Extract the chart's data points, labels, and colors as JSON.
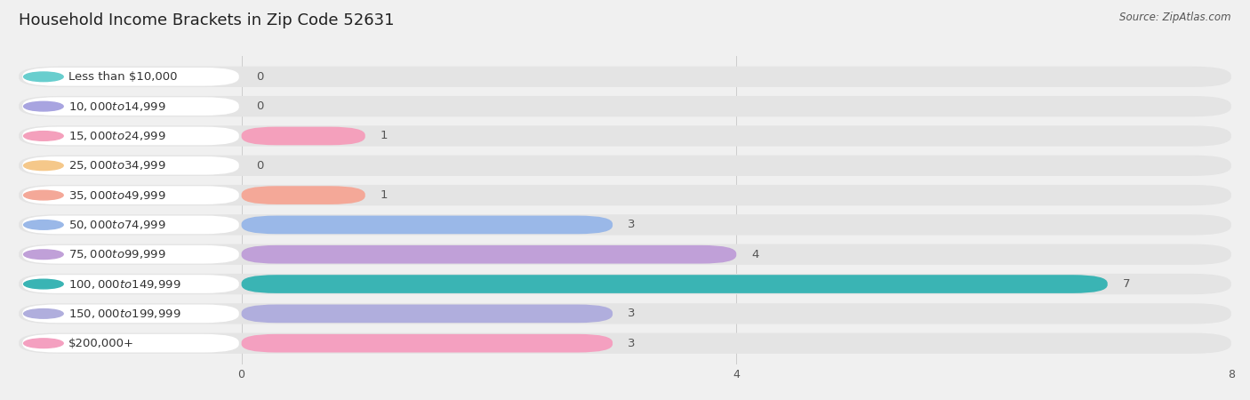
{
  "title": "Household Income Brackets in Zip Code 52631",
  "source": "Source: ZipAtlas.com",
  "categories": [
    "Less than $10,000",
    "$10,000 to $14,999",
    "$15,000 to $24,999",
    "$25,000 to $34,999",
    "$35,000 to $49,999",
    "$50,000 to $74,999",
    "$75,000 to $99,999",
    "$100,000 to $149,999",
    "$150,000 to $199,999",
    "$200,000+"
  ],
  "values": [
    0,
    0,
    1,
    0,
    1,
    3,
    4,
    7,
    3,
    3
  ],
  "bar_colors": [
    "#68cece",
    "#a8a4e0",
    "#f4a0bc",
    "#f5c88a",
    "#f4a898",
    "#9ab8e8",
    "#c0a0d8",
    "#3ab4b4",
    "#b0aedd",
    "#f4a0c0"
  ],
  "label_pill_color": "#ffffff",
  "background_color": "#f0f0f0",
  "bar_track_color": "#e4e4e4",
  "xlim": [
    0,
    8
  ],
  "xticks": [
    0,
    4,
    8
  ],
  "title_fontsize": 13,
  "label_fontsize": 9.5,
  "value_fontsize": 9.5
}
